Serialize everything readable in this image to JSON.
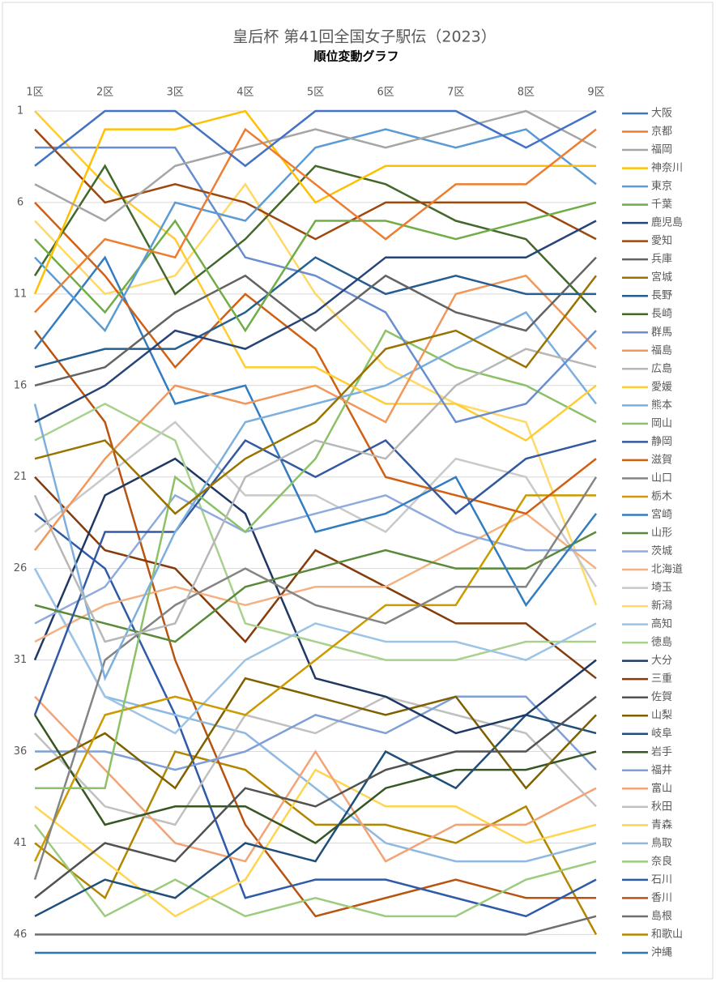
{
  "chart_data": {
    "type": "line",
    "title": "皇后杯 第41回全国女子駅伝（2023）",
    "subtitle": "順位変動グラフ",
    "categories": [
      "1区",
      "2区",
      "3区",
      "4区",
      "5区",
      "6区",
      "7区",
      "8区",
      "9区"
    ],
    "ylim": [
      1,
      47
    ],
    "yticks": [
      1,
      6,
      11,
      16,
      21,
      26,
      31,
      36,
      41,
      46
    ],
    "y_inverted": true,
    "grid": true,
    "legend": "right",
    "series": [
      {
        "name": "大阪",
        "color": "#4472C4",
        "values": [
          4,
          1,
          1,
          4,
          1,
          1,
          1,
          3,
          1
        ]
      },
      {
        "name": "京都",
        "color": "#ED7D31",
        "values": [
          12,
          8,
          9,
          2,
          5,
          8,
          5,
          5,
          2
        ]
      },
      {
        "name": "福岡",
        "color": "#A5A5A5",
        "values": [
          5,
          7,
          4,
          3,
          2,
          3,
          2,
          1,
          3
        ]
      },
      {
        "name": "神奈川",
        "color": "#FFC000",
        "values": [
          11,
          2,
          2,
          1,
          6,
          4,
          4,
          4,
          4
        ]
      },
      {
        "name": "東京",
        "color": "#5B9BD5",
        "values": [
          9,
          13,
          6,
          7,
          3,
          2,
          3,
          2,
          5
        ]
      },
      {
        "name": "千葉",
        "color": "#70AD47",
        "values": [
          8,
          12,
          7,
          13,
          7,
          7,
          8,
          7,
          6
        ]
      },
      {
        "name": "鹿児島",
        "color": "#264478",
        "values": [
          18,
          16,
          13,
          14,
          12,
          9,
          9,
          9,
          7
        ]
      },
      {
        "name": "愛知",
        "color": "#9E480E",
        "values": [
          2,
          6,
          5,
          6,
          8,
          6,
          6,
          6,
          8
        ]
      },
      {
        "name": "兵庫",
        "color": "#636363",
        "values": [
          16,
          15,
          12,
          10,
          13,
          10,
          12,
          13,
          9
        ]
      },
      {
        "name": "宮城",
        "color": "#997300",
        "values": [
          20,
          19,
          23,
          20,
          18,
          14,
          13,
          15,
          10
        ]
      },
      {
        "name": "長野",
        "color": "#255E91",
        "values": [
          15,
          14,
          14,
          12,
          9,
          11,
          10,
          11,
          11
        ]
      },
      {
        "name": "長崎",
        "color": "#43682B",
        "values": [
          10,
          4,
          11,
          8,
          4,
          5,
          7,
          8,
          12
        ]
      },
      {
        "name": "群馬",
        "color": "#698ED0",
        "values": [
          3,
          3,
          3,
          9,
          10,
          12,
          18,
          17,
          13
        ]
      },
      {
        "name": "福島",
        "color": "#F1975A",
        "values": [
          25,
          20,
          16,
          17,
          16,
          18,
          11,
          10,
          14
        ]
      },
      {
        "name": "広島",
        "color": "#B7B7B7",
        "values": [
          22,
          30,
          29,
          21,
          19,
          20,
          16,
          14,
          15
        ]
      },
      {
        "name": "愛媛",
        "color": "#FFCD33",
        "values": [
          1,
          5,
          8,
          15,
          15,
          17,
          17,
          19,
          16
        ]
      },
      {
        "name": "熊本",
        "color": "#7CAFDD",
        "values": [
          17,
          32,
          24,
          18,
          17,
          16,
          14,
          12,
          17
        ]
      },
      {
        "name": "岡山",
        "color": "#8CC168",
        "values": [
          38,
          38,
          21,
          24,
          20,
          13,
          15,
          16,
          18
        ]
      },
      {
        "name": "静岡",
        "color": "#335AA1",
        "values": [
          34,
          24,
          24,
          19,
          21,
          19,
          23,
          20,
          19
        ]
      },
      {
        "name": "滋賀",
        "color": "#D26012",
        "values": [
          6,
          10,
          15,
          11,
          14,
          21,
          22,
          23,
          20
        ]
      },
      {
        "name": "山口",
        "color": "#848484",
        "values": [
          43,
          31,
          28,
          26,
          28,
          29,
          27,
          27,
          21
        ]
      },
      {
        "name": "栃木",
        "color": "#CC9A00",
        "values": [
          42,
          34,
          33,
          34,
          31,
          28,
          28,
          22,
          22
        ]
      },
      {
        "name": "宮崎",
        "color": "#327DC2",
        "values": [
          14,
          9,
          17,
          16,
          24,
          23,
          21,
          28,
          23
        ]
      },
      {
        "name": "山形",
        "color": "#5A8A39",
        "values": [
          28,
          29,
          30,
          27,
          26,
          25,
          26,
          26,
          24
        ]
      },
      {
        "name": "茨城",
        "color": "#8FAADC",
        "values": [
          29,
          27,
          22,
          24,
          23,
          22,
          24,
          25,
          25
        ]
      },
      {
        "name": "北海道",
        "color": "#F4B183",
        "values": [
          30,
          28,
          27,
          28,
          27,
          27,
          25,
          23,
          26
        ]
      },
      {
        "name": "埼玉",
        "color": "#C9C9C9",
        "values": [
          24,
          21,
          18,
          22,
          22,
          24,
          20,
          21,
          27
        ]
      },
      {
        "name": "新潟",
        "color": "#FFD966",
        "values": [
          7,
          11,
          10,
          5,
          11,
          15,
          17,
          18,
          28
        ]
      },
      {
        "name": "高知",
        "color": "#9DC3E6",
        "values": [
          26,
          33,
          35,
          31,
          29,
          30,
          30,
          31,
          29
        ]
      },
      {
        "name": "徳島",
        "color": "#A9D18E",
        "values": [
          19,
          17,
          19,
          29,
          30,
          31,
          31,
          30,
          30
        ]
      },
      {
        "name": "大分",
        "color": "#1F3864",
        "values": [
          31,
          22,
          20,
          23,
          32,
          33,
          35,
          34,
          31
        ]
      },
      {
        "name": "三重",
        "color": "#843C0C",
        "values": [
          21,
          25,
          26,
          30,
          25,
          27,
          29,
          29,
          32
        ]
      },
      {
        "name": "佐賀",
        "color": "#525252",
        "values": [
          44,
          41,
          42,
          38,
          39,
          37,
          36,
          36,
          33
        ]
      },
      {
        "name": "山梨",
        "color": "#7F6000",
        "values": [
          37,
          35,
          38,
          32,
          33,
          34,
          33,
          38,
          34
        ]
      },
      {
        "name": "岐阜",
        "color": "#1F4E79",
        "values": [
          45,
          43,
          44,
          41,
          42,
          36,
          38,
          34,
          35
        ]
      },
      {
        "name": "岩手",
        "color": "#375623",
        "values": [
          34,
          40,
          39,
          39,
          41,
          38,
          37,
          37,
          36
        ]
      },
      {
        "name": "福井",
        "color": "#7F9FD6",
        "values": [
          36,
          36,
          37,
          36,
          34,
          35,
          33,
          33,
          37
        ]
      },
      {
        "name": "富山",
        "color": "#F4A377",
        "values": [
          33,
          37,
          41,
          42,
          36,
          42,
          40,
          40,
          38
        ]
      },
      {
        "name": "秋田",
        "color": "#C0C0C0",
        "values": [
          35,
          39,
          40,
          34,
          35,
          33,
          34,
          35,
          39
        ]
      },
      {
        "name": "青森",
        "color": "#FFD54F",
        "values": [
          39,
          42,
          45,
          43,
          37,
          39,
          39,
          41,
          40
        ]
      },
      {
        "name": "鳥取",
        "color": "#8FB9E0",
        "values": [
          26,
          33,
          34,
          35,
          38,
          41,
          42,
          42,
          41
        ]
      },
      {
        "name": "奈良",
        "color": "#9CCB7D",
        "values": [
          40,
          45,
          43,
          45,
          44,
          45,
          45,
          43,
          42
        ]
      },
      {
        "name": "石川",
        "color": "#2E5AA8",
        "values": [
          23,
          26,
          34,
          44,
          43,
          43,
          44,
          45,
          43
        ]
      },
      {
        "name": "香川",
        "color": "#B8540F",
        "values": [
          13,
          18,
          31,
          40,
          45,
          44,
          43,
          44,
          44
        ]
      },
      {
        "name": "島根",
        "color": "#6E6E6E",
        "values": [
          46,
          46,
          46,
          46,
          46,
          46,
          46,
          46,
          45
        ]
      },
      {
        "name": "和歌山",
        "color": "#B38600",
        "values": [
          41,
          44,
          36,
          37,
          40,
          40,
          41,
          39,
          46
        ]
      },
      {
        "name": "沖縄",
        "color": "#2E75B6",
        "values": [
          47,
          47,
          47,
          47,
          47,
          47,
          47,
          47,
          47
        ]
      }
    ]
  }
}
